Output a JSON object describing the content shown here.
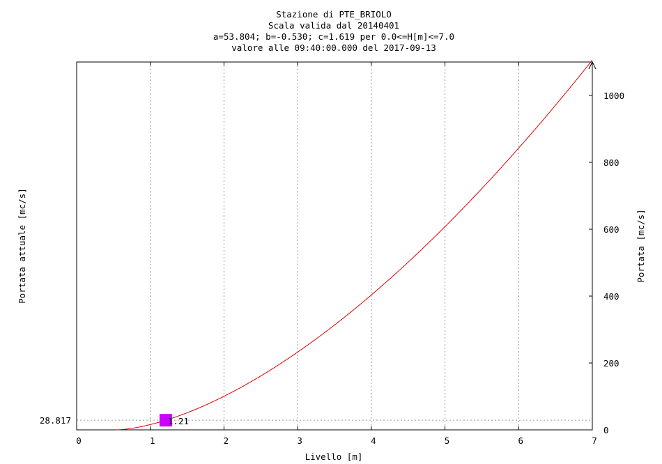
{
  "chart_data": {
    "type": "line",
    "title_lines": [
      "Stazione di PTE_BRIOLO",
      "Scala valida dal 20140401",
      "a=53.804; b=-0.530; c=1.619 per 0.0<=H[m]<=7.0",
      "valore alle 09:40:00.000 del 2017-09-13"
    ],
    "xlabel": "Livello [m]",
    "ylabel_left": "Portata attuale [mc/s]",
    "ylabel_right": "Portata [mc/s]",
    "xlim": [
      0,
      7
    ],
    "ylim": [
      0,
      1100
    ],
    "x_ticks": [
      0,
      1,
      2,
      3,
      4,
      5,
      6,
      7
    ],
    "y_ticks_right": [
      0,
      200,
      400,
      600,
      800,
      1000
    ],
    "grid": "vertical-dotted",
    "curve": {
      "color": "#e00000",
      "a": 53.804,
      "b": -0.53,
      "c": 1.619,
      "h_min": 0.0,
      "h_max": 7.0
    },
    "current": {
      "level": 1.21,
      "level_label": "1.21",
      "flow": 28.817,
      "flow_label": "28.817",
      "color": "#cc00ff"
    }
  }
}
